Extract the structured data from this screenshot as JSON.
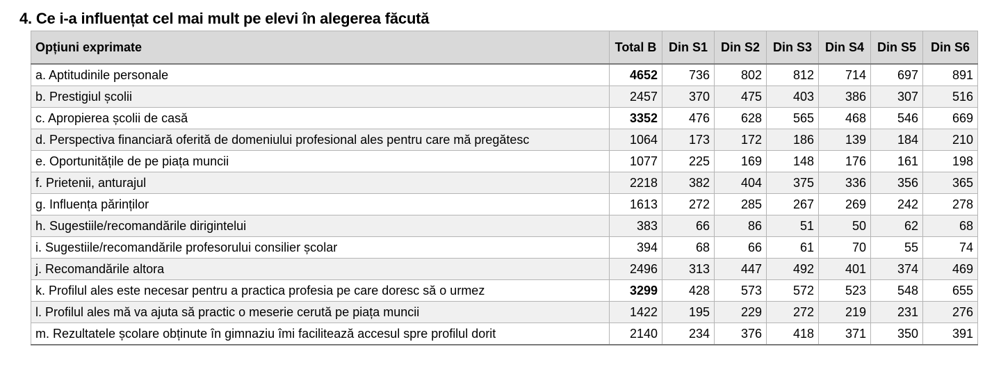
{
  "title": "4. Ce i-a influențat cel mai mult pe elevi în alegerea făcută",
  "table": {
    "headers": [
      "Opțiuni exprimate",
      "Total B",
      "Din S1",
      "Din S2",
      "Din S3",
      "Din S4",
      "Din S5",
      "Din S6"
    ],
    "rows": [
      {
        "label": "a. Aptitudinile personale",
        "total": "4652",
        "total_bold": true,
        "values": [
          "736",
          "802",
          "812",
          "714",
          "697",
          "891"
        ]
      },
      {
        "label": "b. Prestigiul școlii",
        "total": "2457",
        "total_bold": false,
        "values": [
          "370",
          "475",
          "403",
          "386",
          "307",
          "516"
        ]
      },
      {
        "label": "c. Apropierea școlii de casă",
        "total": "3352",
        "total_bold": true,
        "values": [
          "476",
          "628",
          "565",
          "468",
          "546",
          "669"
        ]
      },
      {
        "label": "d. Perspectiva financiară oferită de domeniului profesional ales pentru care mă pregătesc",
        "total": "1064",
        "total_bold": false,
        "values": [
          "173",
          "172",
          "186",
          "139",
          "184",
          "210"
        ]
      },
      {
        "label": "e. Oportunitățile de pe piața muncii",
        "total": "1077",
        "total_bold": false,
        "values": [
          "225",
          "169",
          "148",
          "176",
          "161",
          "198"
        ]
      },
      {
        "label": "f. Prietenii, anturajul",
        "total": "2218",
        "total_bold": false,
        "values": [
          "382",
          "404",
          "375",
          "336",
          "356",
          "365"
        ]
      },
      {
        "label": "g. Influența părinților",
        "total": "1613",
        "total_bold": false,
        "values": [
          "272",
          "285",
          "267",
          "269",
          "242",
          "278"
        ]
      },
      {
        "label": "h. Sugestiile/recomandările dirigintelui",
        "total": "383",
        "total_bold": false,
        "values": [
          "66",
          "86",
          "51",
          "50",
          "62",
          "68"
        ]
      },
      {
        "label": "i. Sugestiile/recomandările profesorului consilier școlar",
        "total": "394",
        "total_bold": false,
        "values": [
          "68",
          "66",
          "61",
          "70",
          "55",
          "74"
        ]
      },
      {
        "label": "j. Recomandările altora",
        "total": "2496",
        "total_bold": false,
        "values": [
          "313",
          "447",
          "492",
          "401",
          "374",
          "469"
        ]
      },
      {
        "label": "k. Profilul ales este necesar pentru a practica profesia pe care doresc să o urmez",
        "total": "3299",
        "total_bold": true,
        "values": [
          "428",
          "573",
          "572",
          "523",
          "548",
          "655"
        ]
      },
      {
        "label": "l. Profilul ales mă va ajuta să practic o meserie cerută pe piața muncii",
        "total": "1422",
        "total_bold": false,
        "values": [
          "195",
          "229",
          "272",
          "219",
          "231",
          "276"
        ]
      },
      {
        "label": "m. Rezultatele școlare obținute în gimnaziu îmi facilitează accesul spre profilul dorit",
        "total": "2140",
        "total_bold": false,
        "values": [
          "234",
          "376",
          "418",
          "371",
          "350",
          "391"
        ]
      }
    ]
  }
}
